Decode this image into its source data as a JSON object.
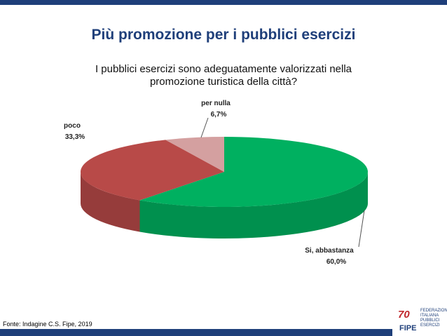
{
  "chart_data": {
    "type": "pie",
    "title": "Più promozione per i pubblici esercizi",
    "subtitle": "I pubblici esercizi sono adeguatamente valorizzati nella promozione turistica della città?",
    "categories": [
      "Si, abbastanza",
      "poco",
      "per nulla"
    ],
    "values": [
      60.0,
      33.3,
      6.7
    ],
    "value_labels": [
      "60,0%",
      "33,3%",
      "6,7%"
    ],
    "colors": [
      "#00b060",
      "#b84a48",
      "#d4a0a0"
    ],
    "source": "Fonte: Indagine C.S. Fipe, 2019"
  },
  "logo": {
    "mark": "70",
    "name": "FIPE",
    "full": "FEDERAZIONI ITALIANA PUBBLICI ESERCIZI"
  }
}
